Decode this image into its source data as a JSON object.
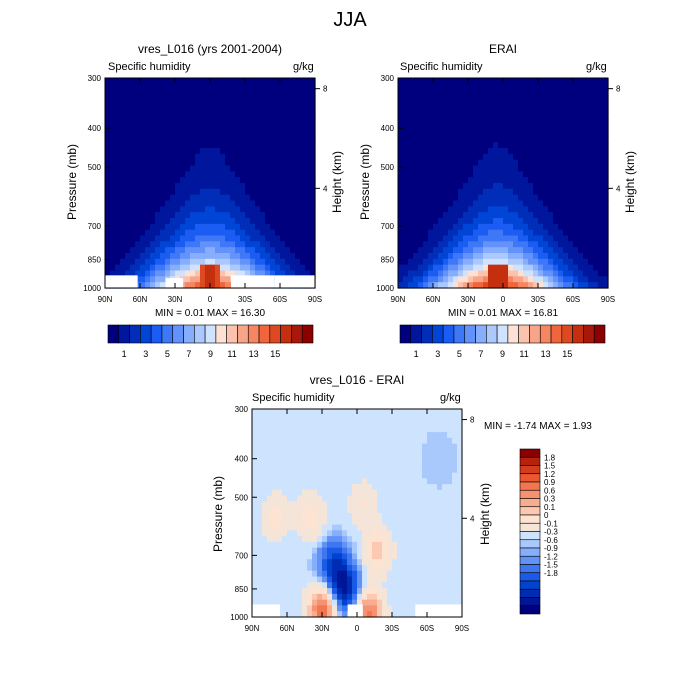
{
  "title": "JJA",
  "panels": [
    {
      "title": "vres_L016 (yrs 2001-2004)",
      "variable": "Specific humidity",
      "units": "g/kg",
      "ylabel": "Pressure (mb)",
      "ylabel_right": "Height (km)",
      "minmax": "MIN =   0.01   MAX =  16.30"
    },
    {
      "title": "ERAI",
      "variable": "Specific humidity",
      "units": "g/kg",
      "ylabel": "Pressure (mb)",
      "ylabel_right": "Height (km)",
      "minmax": "MIN =   0.01   MAX =  16.81"
    },
    {
      "title": "vres_L016 - ERAI",
      "variable": "Specific humidity",
      "units": "g/kg",
      "ylabel": "Pressure (mb)",
      "ylabel_right": "Height (km)",
      "minmax": "MIN =  -1.74   MAX =    1.93"
    }
  ],
  "chart_data": [
    {
      "type": "heatmap",
      "title": "vres_L016 (yrs 2001-2004)",
      "subtitle": "Specific humidity",
      "xlabel": "",
      "ylabel": "Pressure (mb)",
      "ylabel_right": "Height (km)",
      "x_ticks": [
        "90N",
        "60N",
        "30N",
        "0",
        "30S",
        "60S",
        "90S"
      ],
      "y_ticks": [
        300,
        400,
        500,
        700,
        850,
        1000
      ],
      "y_ticks_right": [
        8,
        4
      ],
      "xlim": [
        90,
        -90
      ],
      "ylim": [
        1000,
        300
      ],
      "y_scale": "log",
      "peak": {
        "lat": 0,
        "value": 16.3
      },
      "surface_value": 15.5,
      "top_value": 0.3,
      "min": 0.01,
      "max": 16.3,
      "units": "g/kg",
      "colorbar_labels": [
        1,
        3,
        5,
        7,
        9,
        11,
        13,
        15
      ],
      "colorbar_orientation": "horizontal"
    },
    {
      "type": "heatmap",
      "title": "ERAI",
      "subtitle": "Specific humidity",
      "xlabel": "",
      "ylabel": "Pressure (mb)",
      "ylabel_right": "Height (km)",
      "x_ticks": [
        "90N",
        "60N",
        "30N",
        "0",
        "30S",
        "60S",
        "90S"
      ],
      "y_ticks": [
        300,
        400,
        500,
        700,
        850,
        1000
      ],
      "y_ticks_right": [
        8,
        4
      ],
      "xlim": [
        90,
        -90
      ],
      "ylim": [
        1000,
        300
      ],
      "y_scale": "log",
      "peak": {
        "lat": 5,
        "value": 16.8
      },
      "surface_value": 16.2,
      "top_value": 0.3,
      "min": 0.01,
      "max": 16.81,
      "units": "g/kg",
      "colorbar_labels": [
        1,
        3,
        5,
        7,
        9,
        11,
        13,
        15
      ],
      "colorbar_orientation": "horizontal"
    },
    {
      "type": "heatmap",
      "title": "vres_L016 - ERAI",
      "subtitle": "Specific humidity",
      "xlabel": "",
      "ylabel": "Pressure (mb)",
      "ylabel_right": "Height (km)",
      "x_ticks": [
        "90N",
        "60N",
        "30N",
        "0",
        "30S",
        "60S",
        "90S"
      ],
      "y_ticks": [
        300,
        400,
        500,
        700,
        850,
        1000
      ],
      "y_ticks_right": [
        8,
        4
      ],
      "xlim": [
        90,
        -90
      ],
      "ylim": [
        1000,
        300
      ],
      "y_scale": "log",
      "min": -1.74,
      "max": 1.93,
      "units": "g/kg",
      "features": [
        {
          "lat": 10,
          "p": 850,
          "value": -1.7
        },
        {
          "lat": 20,
          "p": 740,
          "value": -1.2
        },
        {
          "lat": 30,
          "p": 960,
          "value": 1.9
        },
        {
          "lat": -10,
          "p": 980,
          "value": 1.8
        },
        {
          "lat": -18,
          "p": 680,
          "value": 0.9
        },
        {
          "lat": 40,
          "p": 560,
          "value": 0.7
        },
        {
          "lat": -5,
          "p": 520,
          "value": 0.5
        },
        {
          "lat": 70,
          "p": 560,
          "value": 0.6
        },
        {
          "lat": -70,
          "p": 400,
          "value": -0.1
        }
      ],
      "colorbar_labels": [
        1.8,
        1.5,
        1.2,
        0.9,
        0.6,
        0.3,
        0.1,
        0,
        -0.1,
        -0.3,
        -0.6,
        -0.9,
        -1.2,
        -1.5,
        -1.8
      ],
      "colorbar_orientation": "vertical"
    }
  ],
  "colors": {
    "seq": [
      "#00007f",
      "#00169c",
      "#002eb9",
      "#0045d6",
      "#1b5cf2",
      "#3f78f7",
      "#6393fa",
      "#87aefc",
      "#abc9fd",
      "#cfe2fe",
      "#fde1d4",
      "#fbc3ae",
      "#f8a488",
      "#f68562",
      "#f1653c",
      "#dd4a21",
      "#c4300f",
      "#a8180a",
      "#8b0000"
    ],
    "div": [
      "#00007f",
      "#001699",
      "#002cb3",
      "#0043cd",
      "#1a5ae6",
      "#3d76f0",
      "#6192f6",
      "#85aefb",
      "#a9c9fd",
      "#cde3fe",
      "#f4e5d8",
      "#fde3d2",
      "#fcc8b1",
      "#f9ad90",
      "#f6926f",
      "#f2764e",
      "#ea5730",
      "#d43c1c",
      "#b5220e",
      "#8b0000"
    ]
  }
}
